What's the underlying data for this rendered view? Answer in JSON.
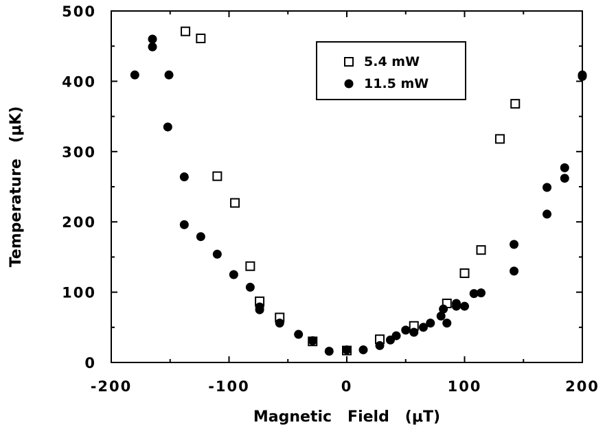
{
  "chart_data": {
    "type": "scatter",
    "title": "",
    "xlabel": "Magnetic   Field   (μT)",
    "ylabel": "Temperature   (μK)",
    "xlim": [
      -200,
      200
    ],
    "ylim": [
      0,
      500
    ],
    "x_ticks": [
      "-200",
      "-100",
      "0",
      "100",
      "200"
    ],
    "y_ticks": [
      "0",
      "100",
      "200",
      "300",
      "400",
      "500"
    ],
    "grid": false,
    "legend_position": "top-right",
    "series": [
      {
        "name": "5.4   mW",
        "marker": "open-square",
        "color": "#000000",
        "points": [
          [
            -137,
            471
          ],
          [
            -124,
            461
          ],
          [
            -110,
            265
          ],
          [
            -95,
            227
          ],
          [
            -82,
            137
          ],
          [
            -74,
            87
          ],
          [
            -57,
            64
          ],
          [
            -29,
            30
          ],
          [
            0,
            17
          ],
          [
            28,
            33
          ],
          [
            57,
            52
          ],
          [
            85,
            84
          ],
          [
            100,
            127
          ],
          [
            114,
            160
          ],
          [
            130,
            318
          ],
          [
            143,
            368
          ]
        ]
      },
      {
        "name": "11.5   mW",
        "marker": "filled-circle",
        "color": "#000000",
        "points": [
          [
            -180,
            409
          ],
          [
            -165,
            460
          ],
          [
            -165,
            449
          ],
          [
            -151,
            409
          ],
          [
            -152,
            335
          ],
          [
            -138,
            264
          ],
          [
            -138,
            196
          ],
          [
            -124,
            179
          ],
          [
            -110,
            154
          ],
          [
            -96,
            125
          ],
          [
            -82,
            107
          ],
          [
            -74,
            79
          ],
          [
            -74,
            75
          ],
          [
            -57,
            56
          ],
          [
            -41,
            40
          ],
          [
            -29,
            31
          ],
          [
            -15,
            16
          ],
          [
            0,
            18
          ],
          [
            14,
            18
          ],
          [
            28,
            24
          ],
          [
            37,
            32
          ],
          [
            42,
            38
          ],
          [
            50,
            46
          ],
          [
            57,
            43
          ],
          [
            65,
            50
          ],
          [
            71,
            56
          ],
          [
            80,
            66
          ],
          [
            82,
            76
          ],
          [
            85,
            56
          ],
          [
            93,
            84
          ],
          [
            93,
            80
          ],
          [
            100,
            80
          ],
          [
            108,
            98
          ],
          [
            114,
            99
          ],
          [
            142,
            168
          ],
          [
            142,
            130
          ],
          [
            170,
            249
          ],
          [
            170,
            211
          ],
          [
            185,
            277
          ],
          [
            185,
            262
          ],
          [
            200,
            409
          ],
          [
            200,
            407
          ]
        ]
      }
    ]
  }
}
